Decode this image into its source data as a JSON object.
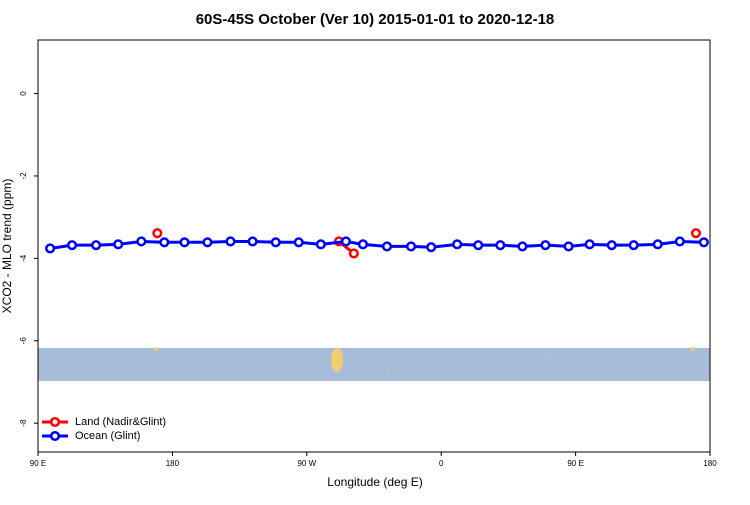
{
  "chart_data": {
    "type": "line",
    "title": "60S-45S October (Ver 10)   2015-01-01 to 2020-12-18",
    "x_label": "Longitude (deg E)",
    "y_label": "XCO2 - MLO trend (ppm)",
    "xlim": [
      90,
      540
    ],
    "xticks": [
      {
        "value": 90,
        "label": "90 E"
      },
      {
        "value": 180,
        "label": "180"
      },
      {
        "value": 270,
        "label": "90 W"
      },
      {
        "value": 360,
        "label": "0"
      },
      {
        "value": 450,
        "label": "90 E"
      },
      {
        "value": 540,
        "label": "180"
      }
    ],
    "ylim": [
      -8.7,
      1.3
    ],
    "yticks": [
      0,
      -2,
      -4,
      -6,
      -8
    ],
    "legend": "bottom-left",
    "series": [
      {
        "name": "Land (Nadir&Glint)",
        "color": "#ff0000",
        "x": [
          169.9,
          null,
          291.5,
          301.5,
          null,
          530.6
        ],
        "values": [
          -3.39,
          null,
          -3.59,
          -3.88,
          null,
          -3.39
        ]
      },
      {
        "name": "Ocean (Glint)",
        "color": "#0000ff",
        "x": [
          98.1,
          112.8,
          128.9,
          143.7,
          159.2,
          174.6,
          188.1,
          203.5,
          218.9,
          233.7,
          249.2,
          264.6,
          279.4,
          296.2,
          307.6,
          323.7,
          339.8,
          353.3,
          370.7,
          384.8,
          399.6,
          414.4,
          429.8,
          445.3,
          459.4,
          474.2,
          488.9,
          505.0,
          519.8,
          535.9
        ],
        "values": [
          -3.76,
          -3.68,
          -3.68,
          -3.66,
          -3.59,
          -3.61,
          -3.61,
          -3.61,
          -3.59,
          -3.59,
          -3.61,
          -3.61,
          -3.66,
          -3.59,
          -3.66,
          -3.71,
          -3.71,
          -3.73,
          -3.66,
          -3.68,
          -3.68,
          -3.71,
          -3.68,
          -3.71,
          -3.66,
          -3.68,
          -3.68,
          -3.66,
          -3.59,
          -3.61
        ]
      }
    ]
  }
}
